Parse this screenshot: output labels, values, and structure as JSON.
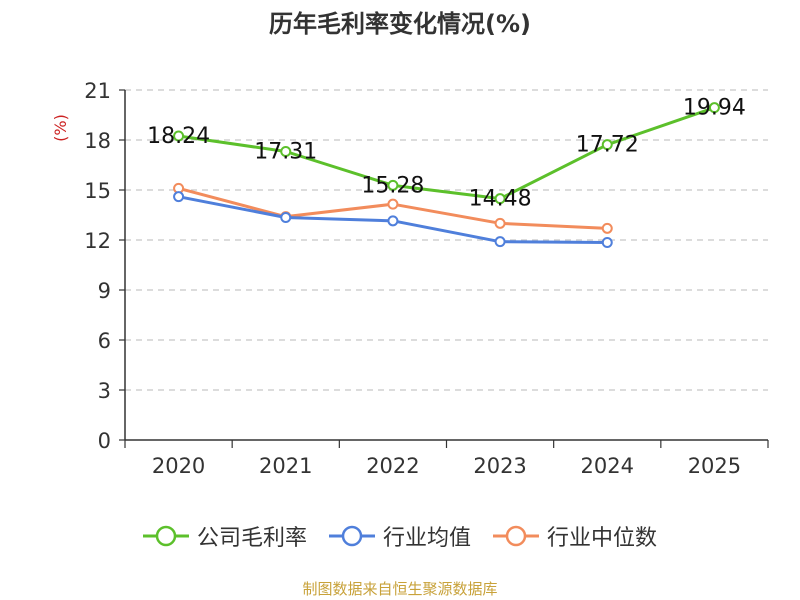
{
  "chart_data": {
    "type": "line",
    "title": "历年毛利率变化情况(%)",
    "ylabel": "(%)",
    "xlabel": "",
    "categories": [
      "2020",
      "2021",
      "2022",
      "2023",
      "2024",
      "2025"
    ],
    "ylim": [
      0,
      21
    ],
    "yticks": [
      0,
      3,
      6,
      9,
      12,
      15,
      18,
      21
    ],
    "grid": true,
    "legend_position": "bottom",
    "series": [
      {
        "name": "公司毛利率",
        "color": "#5cc02b",
        "show_labels": true,
        "labels": [
          "18.24",
          "17.31",
          "15.28",
          "14.48",
          "17.72",
          "19.94"
        ],
        "values": [
          18.24,
          17.31,
          15.28,
          14.48,
          17.72,
          19.94
        ]
      },
      {
        "name": "行业均值",
        "color": "#4f7fdb",
        "show_labels": false,
        "values": [
          14.6,
          13.35,
          13.15,
          11.9,
          11.85,
          null
        ]
      },
      {
        "name": "行业中位数",
        "color": "#f28c5c",
        "show_labels": false,
        "values": [
          15.1,
          13.4,
          14.15,
          13.0,
          12.7,
          null
        ]
      }
    ],
    "source": "制图数据来自恒生聚源数据库"
  }
}
